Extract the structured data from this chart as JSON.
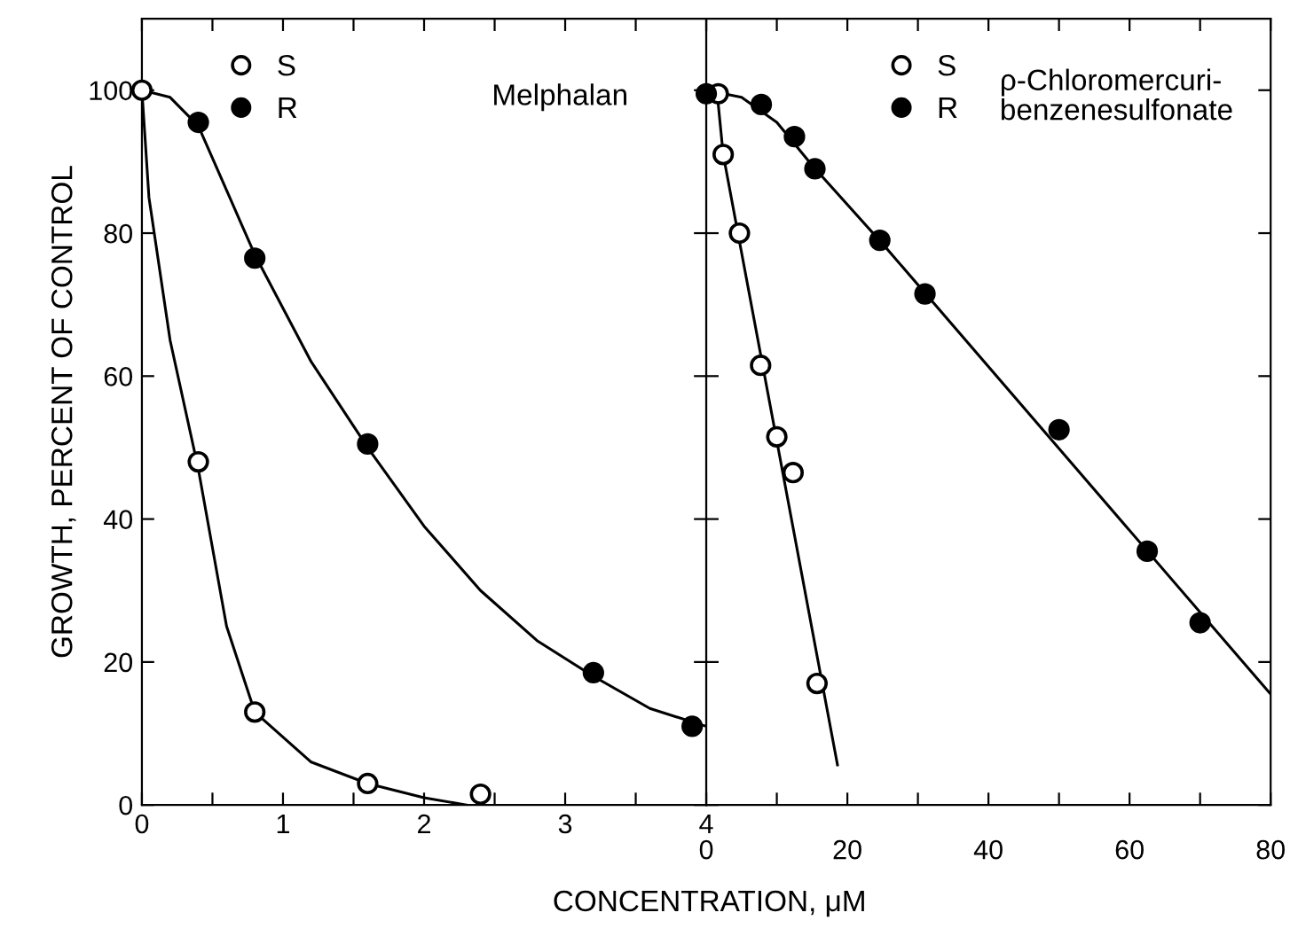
{
  "chart_data": [
    {
      "type": "scatter",
      "xlabel": "CONCENTRATION, μM",
      "ylabel": "GROWTH, PERCENT OF CONTROL",
      "annotations": [
        "Melphalan"
      ],
      "xlim": [
        0,
        4
      ],
      "xticks": [
        0,
        {
          "value": 0.5,
          "label": null
        },
        1,
        {
          "value": 1.5,
          "label": null
        },
        2,
        {
          "value": 2.5,
          "label": null
        },
        3,
        {
          "value": 3.5,
          "label": null
        },
        4
      ],
      "ylim": [
        0,
        110
      ],
      "yticks": [
        0,
        20,
        40,
        60,
        80,
        100
      ],
      "legend": "top",
      "tick_labels": true,
      "series": [
        {
          "name": "S",
          "marker": "circle",
          "color": "#ffffff",
          "x": [
            0,
            0.4,
            0.8,
            1.6,
            2.4
          ],
          "values": [
            100,
            48,
            13,
            3,
            1.5
          ]
        },
        {
          "name": "R",
          "marker": "circle",
          "color": "#000000",
          "x": [
            0.4,
            0.8,
            1.6,
            3.2,
            3.9
          ],
          "values": [
            95.5,
            76.5,
            50.5,
            18.5,
            11
          ]
        },
        {
          "type": "line",
          "color": "#000000",
          "x": [
            0,
            0.05,
            0.2,
            0.4,
            0.6,
            0.8,
            1.2,
            1.6,
            2.0,
            2.3
          ],
          "values": [
            100,
            85,
            65,
            47,
            25,
            13,
            6,
            3,
            1,
            0
          ]
        },
        {
          "type": "line",
          "color": "#000000",
          "x": [
            0,
            0.2,
            0.4,
            0.6,
            0.8,
            1.2,
            1.6,
            2.0,
            2.4,
            2.8,
            3.2,
            3.6,
            4.0
          ],
          "values": [
            100,
            99,
            95,
            86,
            77,
            62,
            50,
            39,
            30,
            23,
            18,
            13.5,
            11
          ]
        }
      ]
    },
    {
      "type": "scatter",
      "annotations": [
        "ρ-Chloromercuri-\nbenzenesulfonate"
      ],
      "xlim": [
        0,
        80
      ],
      "xticks": [
        0,
        {
          "value": 10,
          "label": null
        },
        20,
        {
          "value": 30,
          "label": null
        },
        40,
        {
          "value": 50,
          "label": null
        },
        60,
        {
          "value": 70,
          "label": null
        },
        80
      ],
      "ylim": [
        0,
        110
      ],
      "yticks": [
        {
          "value": 0,
          "label": null
        },
        {
          "value": 20,
          "label": null
        },
        {
          "value": 40,
          "label": null
        },
        {
          "value": 60,
          "label": null
        },
        {
          "value": 80,
          "label": null
        },
        {
          "value": 100,
          "label": null
        }
      ],
      "legend": "top",
      "tick_labels": "x",
      "series": [
        {
          "name": "S",
          "marker": "circle",
          "color": "#ffffff",
          "x": [
            1.7,
            2.4,
            4.7,
            7.7,
            10,
            12.3,
            15.7
          ],
          "values": [
            99.5,
            91,
            80,
            61.5,
            51.5,
            46.5,
            17
          ]
        },
        {
          "name": "R",
          "marker": "circle",
          "color": "#000000",
          "x": [
            0,
            7.8,
            12.5,
            15.4,
            24.6,
            31,
            50,
            62.5,
            70
          ],
          "values": [
            99.5,
            98,
            93.5,
            89,
            79,
            71.5,
            52.5,
            35.5,
            25.5
          ]
        },
        {
          "type": "line",
          "color": "#000000",
          "x": [
            1.5,
            2.4,
            18.6
          ],
          "values": [
            100,
            91,
            5.6
          ]
        },
        {
          "type": "line",
          "color": "#000000",
          "x": [
            0,
            5,
            10,
            15,
            25,
            80
          ],
          "values": [
            100,
            99,
            95.5,
            89.5,
            78.5,
            15.5
          ]
        }
      ]
    }
  ]
}
